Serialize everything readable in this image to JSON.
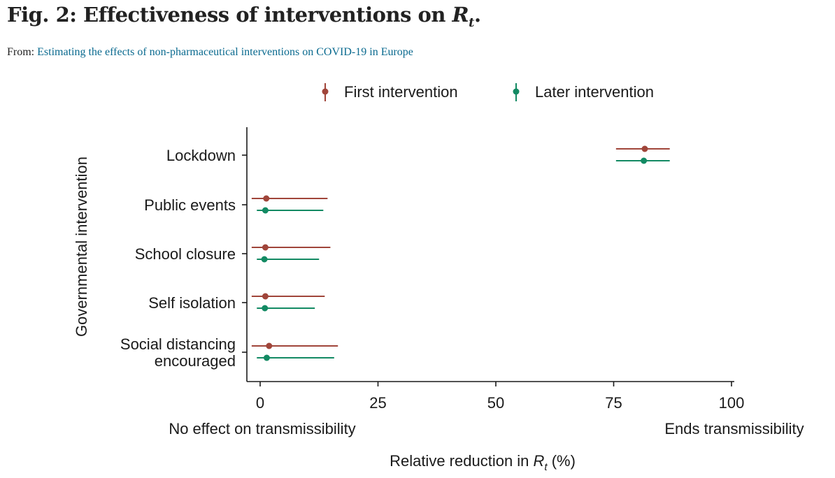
{
  "header": {
    "title_prefix": "Fig. 2: Effectiveness of interventions on",
    "title_symbol": "R",
    "title_subscript": "t",
    "title_suffix": ".",
    "source_label": "From:",
    "source_link": "Estimating the effects of non-pharmaceutical interventions on COVID-19 in Europe"
  },
  "chart_data": {
    "type": "scatter",
    "subtype": "point-range (dot with horizontal interval)",
    "ylabel": "Governmental intervention",
    "xlabel_prefix": "Relative reduction in ",
    "xlabel_symbol": "R",
    "xlabel_subscript": "t",
    "xlabel_suffix": " (%)",
    "xlim": [
      -3,
      101
    ],
    "xticks": [
      0,
      25,
      50,
      75,
      100
    ],
    "x_annotations": {
      "low": "No effect on transmissibility",
      "high": "Ends transmissibility"
    },
    "legend_position": "top",
    "categories": [
      {
        "label": [
          "Lockdown"
        ]
      },
      {
        "label": [
          "Public events"
        ]
      },
      {
        "label": [
          "School closure"
        ]
      },
      {
        "label": [
          "Self isolation"
        ]
      },
      {
        "label": [
          "Social distancing",
          "encouraged"
        ]
      }
    ],
    "series": [
      {
        "name": "First intervention",
        "color": "#a0453a",
        "points": [
          {
            "value": 81.6,
            "low": 75.5,
            "high": 86.9
          },
          {
            "value": 1.3,
            "low": -1.8,
            "high": 14.3
          },
          {
            "value": 1.1,
            "low": -1.8,
            "high": 14.9
          },
          {
            "value": 1.1,
            "low": -1.8,
            "high": 13.7
          },
          {
            "value": 1.9,
            "low": -1.8,
            "high": 16.5
          }
        ]
      },
      {
        "name": "Later intervention",
        "color": "#138a63",
        "points": [
          {
            "value": 81.4,
            "low": 75.5,
            "high": 86.9
          },
          {
            "value": 1.1,
            "low": -0.7,
            "high": 13.4
          },
          {
            "value": 0.9,
            "low": -0.7,
            "high": 12.5
          },
          {
            "value": 1.0,
            "low": -0.7,
            "high": 11.6
          },
          {
            "value": 1.4,
            "low": -0.7,
            "high": 15.7
          }
        ]
      }
    ]
  }
}
